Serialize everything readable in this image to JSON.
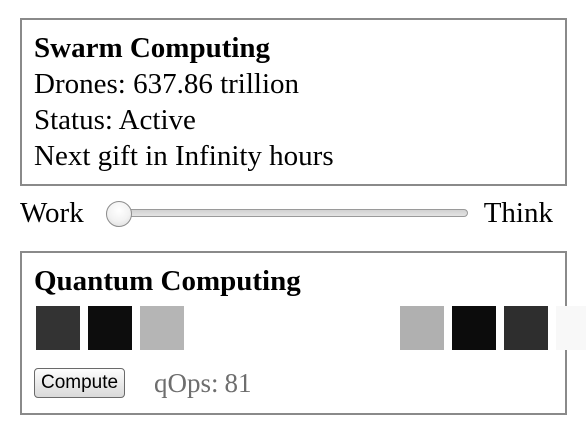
{
  "swarm": {
    "title": "Swarm Computing",
    "drones_line": "Drones: 637.86 trillion",
    "status_line": "Status: Active",
    "next_gift_line": "Next gift in Infinity hours"
  },
  "slider": {
    "left_label": "Work",
    "right_label": "Think",
    "value_fraction": 0.0
  },
  "quantum": {
    "title": "Quantum Computing",
    "qbit_colors": [
      "#333333",
      "#0d0d0d",
      "#b5b5b5",
      "#ffffff",
      "#ffffff",
      "#ffffff",
      "#ffffff",
      "#b0b0b0",
      "#0c0c0c",
      "#2e2e2e",
      "#f8f8f8"
    ],
    "compute_label": "Compute",
    "qops_label": "qOps:",
    "qops_value": "81"
  }
}
